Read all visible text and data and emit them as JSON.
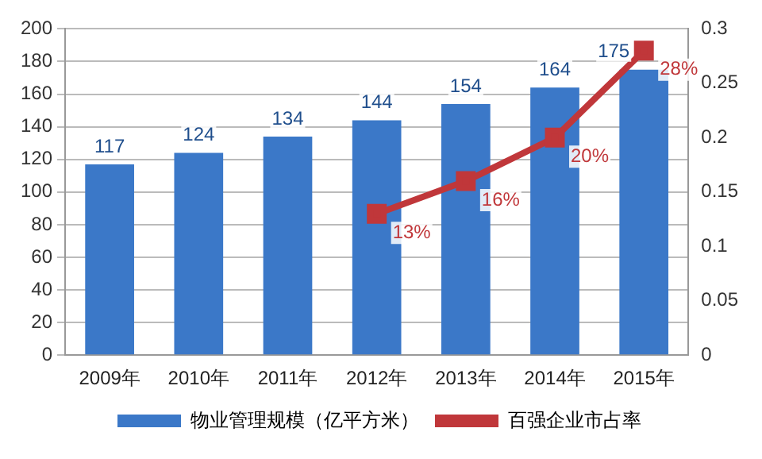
{
  "chart_data": {
    "type": "bar",
    "categories": [
      "2009年",
      "2010年",
      "2011年",
      "2012年",
      "2013年",
      "2014年",
      "2015年"
    ],
    "series": [
      {
        "name": "物业管理规模（亿平方米）",
        "color": "#3b78c8",
        "values": [
          117,
          124,
          134,
          144,
          154,
          164,
          175
        ],
        "value_labels": [
          "117",
          "124",
          "134",
          "144",
          "154",
          "164",
          "175"
        ]
      },
      {
        "name": "百强企业市占率",
        "type": "line",
        "axis": "y2",
        "color": "#c0373a",
        "values": [
          null,
          null,
          null,
          0.13,
          0.16,
          0.2,
          0.28
        ],
        "value_labels": [
          null,
          null,
          null,
          "13%",
          "16%",
          "20%",
          "28%"
        ]
      }
    ],
    "ylim": [
      0,
      200
    ],
    "yticks": [
      0,
      20,
      40,
      60,
      80,
      100,
      120,
      140,
      160,
      180,
      200
    ],
    "y2lim": [
      0,
      0.3
    ],
    "y2ticks": [
      0,
      0.05,
      0.1,
      0.15,
      0.2,
      0.25,
      0.3
    ],
    "grid": "y",
    "legend": "bottom",
    "marker": "square",
    "line_style": "solid"
  }
}
